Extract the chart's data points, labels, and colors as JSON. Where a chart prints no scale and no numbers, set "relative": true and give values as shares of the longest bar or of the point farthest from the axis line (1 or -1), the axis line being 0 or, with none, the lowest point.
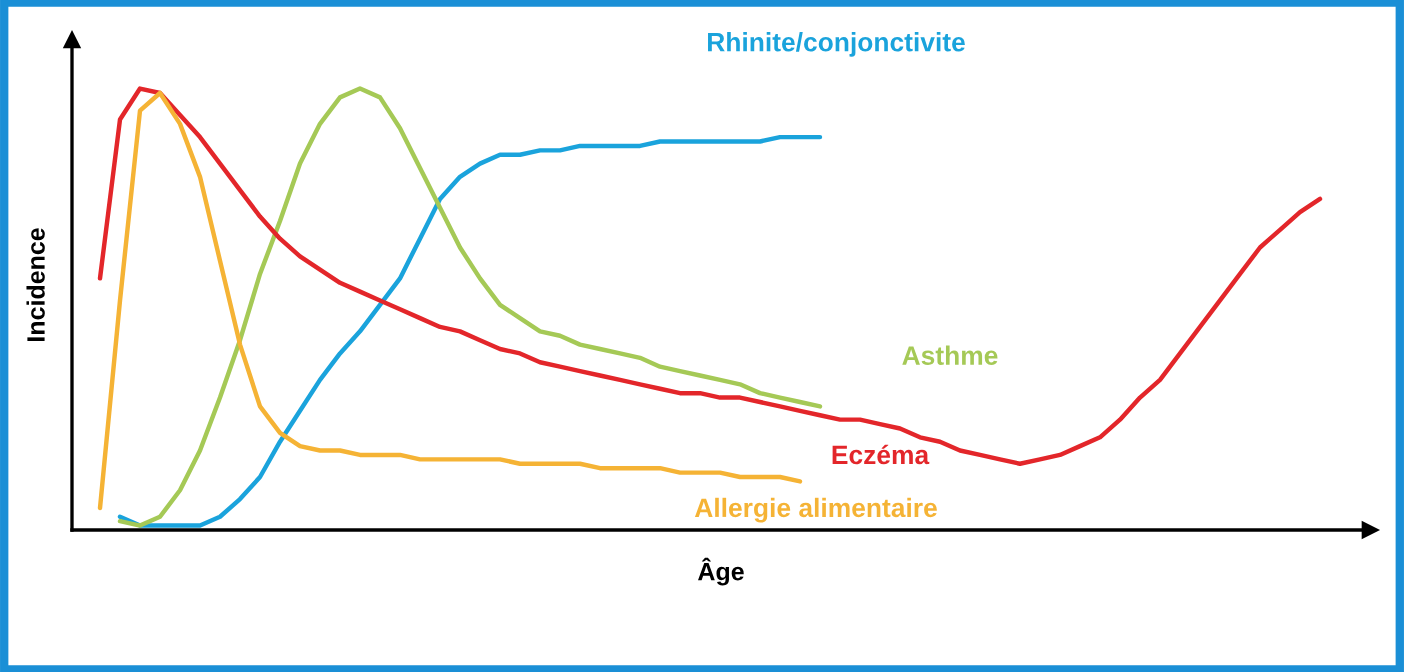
{
  "chart_data": {
    "type": "line",
    "relative": true,
    "xlabel": "Âge",
    "ylabel": "Incidence",
    "legend": false,
    "marker": "none",
    "line_style": "solid",
    "categories": [
      null,
      null,
      null,
      null,
      null,
      null,
      null,
      null,
      null,
      null,
      null,
      null,
      null,
      null,
      null,
      null,
      null,
      null,
      null,
      null,
      null,
      null,
      null,
      null,
      null,
      null,
      null,
      null,
      null,
      null,
      null,
      null,
      null,
      null,
      null,
      null,
      null,
      null,
      null,
      null,
      null,
      null,
      null,
      null,
      null,
      null,
      null,
      null,
      null,
      null,
      null,
      null,
      null,
      null,
      null,
      null,
      null,
      null,
      null,
      null,
      null,
      null,
      null,
      null,
      null
    ],
    "series": [
      {
        "name": "Rhinite/conjonctivite",
        "color": "#1aa3dc",
        "values": [
          null,
          null,
          0.03,
          0.01,
          0.01,
          0.01,
          0.01,
          0.03,
          0.07,
          0.12,
          0.2,
          0.27,
          0.34,
          0.4,
          0.45,
          0.51,
          0.57,
          0.66,
          0.75,
          0.8,
          0.83,
          0.85,
          0.85,
          0.86,
          0.86,
          0.87,
          0.87,
          0.87,
          0.87,
          0.88,
          0.88,
          0.88,
          0.88,
          0.88,
          0.88,
          0.89,
          0.89,
          0.89,
          null,
          null,
          null,
          null,
          null,
          null,
          null,
          null,
          null,
          null,
          null,
          null,
          null,
          null,
          null,
          null,
          null,
          null,
          null,
          null,
          null,
          null,
          null,
          null,
          null,
          null,
          null
        ]
      },
      {
        "name": "Asthme",
        "color": "#a5c956",
        "values": [
          null,
          null,
          0.02,
          0.01,
          0.03,
          0.09,
          0.18,
          0.3,
          0.43,
          0.58,
          0.7,
          0.83,
          0.92,
          0.98,
          1.0,
          0.98,
          0.91,
          0.82,
          0.73,
          0.64,
          0.57,
          0.51,
          0.48,
          0.45,
          0.44,
          0.42,
          0.41,
          0.4,
          0.39,
          0.37,
          0.36,
          0.35,
          0.34,
          0.33,
          0.31,
          0.3,
          0.29,
          0.28,
          null,
          null,
          null,
          null,
          null,
          null,
          null,
          null,
          null,
          null,
          null,
          null,
          null,
          null,
          null,
          null,
          null,
          null,
          null,
          null,
          null,
          null,
          null,
          null,
          null,
          null,
          null
        ]
      },
      {
        "name": "Eczéma",
        "color": "#e3262a",
        "values": [
          null,
          0.57,
          0.93,
          1.0,
          0.99,
          0.94,
          0.89,
          0.83,
          0.77,
          0.71,
          0.66,
          0.62,
          0.59,
          0.56,
          0.54,
          0.52,
          0.5,
          0.48,
          0.46,
          0.45,
          0.43,
          0.41,
          0.4,
          0.38,
          0.37,
          0.36,
          0.35,
          0.34,
          0.33,
          0.32,
          0.31,
          0.31,
          0.3,
          0.3,
          0.29,
          0.28,
          0.27,
          0.26,
          0.25,
          0.25,
          0.24,
          0.23,
          0.21,
          0.2,
          0.18,
          0.17,
          0.16,
          0.15,
          0.16,
          0.17,
          0.19,
          0.21,
          0.25,
          0.3,
          0.34,
          0.4,
          0.46,
          0.52,
          0.58,
          0.64,
          0.68,
          0.72,
          0.75,
          null,
          null
        ]
      },
      {
        "name": "Allergie alimentaire",
        "color": "#f5b335",
        "values": [
          null,
          0.05,
          0.52,
          0.95,
          0.99,
          0.92,
          0.8,
          0.61,
          0.42,
          0.28,
          0.22,
          0.19,
          0.18,
          0.18,
          0.17,
          0.17,
          0.17,
          0.16,
          0.16,
          0.16,
          0.16,
          0.16,
          0.15,
          0.15,
          0.15,
          0.15,
          0.14,
          0.14,
          0.14,
          0.14,
          0.13,
          0.13,
          0.13,
          0.12,
          0.12,
          0.12,
          0.11,
          null,
          null,
          null,
          null,
          null,
          null,
          null,
          null,
          null,
          null,
          null,
          null,
          null,
          null,
          null,
          null,
          null,
          null,
          null,
          null,
          null,
          null,
          null,
          null,
          null,
          null,
          null,
          null
        ]
      }
    ]
  }
}
